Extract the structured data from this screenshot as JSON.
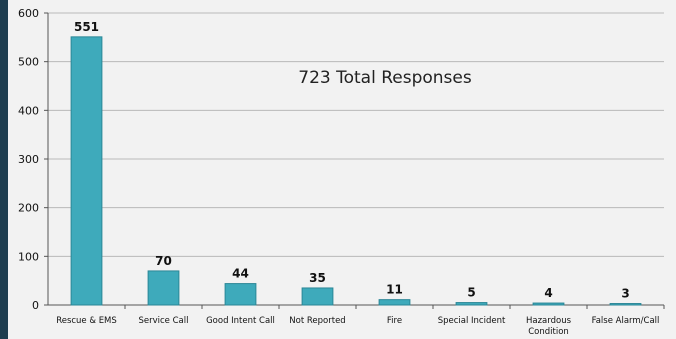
{
  "chart_data": {
    "type": "bar",
    "categories": [
      "Rescue & EMS",
      "Service Call",
      "Good Intent Call",
      "Not Reported",
      "Fire",
      "Special Incident",
      "Hazardous Condition",
      "False Alarm/Call"
    ],
    "category_lines": [
      [
        "Rescue & EMS"
      ],
      [
        "Service Call"
      ],
      [
        "Good Intent Call"
      ],
      [
        "Not Reported"
      ],
      [
        "Fire"
      ],
      [
        "Special Incident"
      ],
      [
        "Hazardous",
        "Condition"
      ],
      [
        "False Alarm/Call"
      ]
    ],
    "values": [
      551,
      70,
      44,
      35,
      11,
      5,
      4,
      3
    ],
    "ylim": [
      0,
      600
    ],
    "yticks": [
      0,
      100,
      200,
      300,
      400,
      500,
      600
    ],
    "grid": true,
    "annotation": "723 Total Responses",
    "colors": {
      "bar_fill": "#3eaabb",
      "bar_stroke": "#2b8797",
      "plot_bg": "#f2f2f2",
      "grid": "#b9b9b9",
      "frame": "#1e3d4f"
    }
  }
}
